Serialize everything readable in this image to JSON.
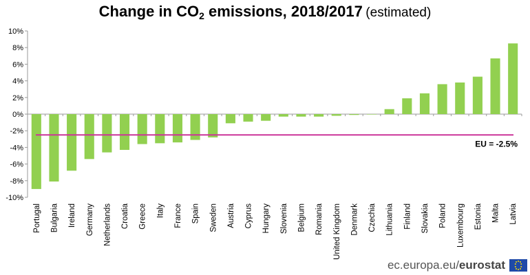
{
  "title": {
    "main": "Change in CO",
    "sub": "2",
    "rest": " emissions, 2018/2017",
    "note": "(estimated)"
  },
  "footer": {
    "source_plain": "ec.europa.eu/",
    "source_bold": "eurostat"
  },
  "colors": {
    "bar": "#92d050",
    "eu_line": "#cc3399",
    "grid": "#d9d9d9"
  },
  "chart_data": {
    "type": "bar",
    "categories": [
      "Portugal",
      "Bulgaria",
      "Ireland",
      "Germany",
      "Netherlands",
      "Croatia",
      "Greece",
      "Italy",
      "France",
      "Spain",
      "Sweden",
      "Austria",
      "Cyprus",
      "Hungary",
      "Slovenia",
      "Belgium",
      "Romania",
      "United Kingdom",
      "Denmark",
      "Czechia",
      "Lithuania",
      "Finland",
      "Slovakia",
      "Poland",
      "Luxembourg",
      "Estonia",
      "Malta",
      "Latvia"
    ],
    "values": [
      -9.0,
      -8.1,
      -6.8,
      -5.4,
      -4.6,
      -4.3,
      -3.6,
      -3.5,
      -3.4,
      -3.1,
      -2.8,
      -1.1,
      -0.9,
      -0.8,
      -0.3,
      -0.3,
      -0.3,
      -0.2,
      -0.1,
      -0.05,
      0.6,
      1.9,
      2.5,
      3.6,
      3.8,
      4.5,
      6.7,
      8.5
    ],
    "ylim": [
      -10,
      10
    ],
    "yticks": [
      10,
      8,
      6,
      4,
      2,
      0,
      -2,
      -4,
      -6,
      -8,
      -10
    ],
    "ytick_suffix": "%",
    "grid": false,
    "reference_line": {
      "value": -2.5,
      "label": "EU = -2.5%"
    }
  }
}
